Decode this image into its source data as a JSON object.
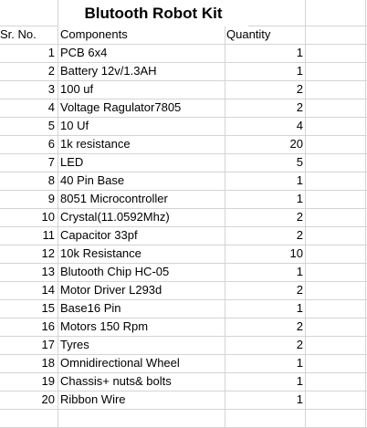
{
  "title": "Blutooth Robot Kit",
  "headers": {
    "sr_no": "Sr. No.",
    "components": "Components",
    "quantity": "Quantity"
  },
  "rows": [
    {
      "sr": "1",
      "component": "PCB 6x4",
      "qty": "1"
    },
    {
      "sr": "2",
      "component": "Battery 12v/1.3AH",
      "qty": "1"
    },
    {
      "sr": "3",
      "component": "100 uf",
      "qty": "2"
    },
    {
      "sr": "4",
      "component": "Voltage Ragulator7805",
      "qty": "2"
    },
    {
      "sr": "5",
      "component": "10 Uf",
      "qty": "4"
    },
    {
      "sr": "6",
      "component": "1k resistance",
      "qty": "20"
    },
    {
      "sr": "7",
      "component": "LED",
      "qty": "5"
    },
    {
      "sr": "8",
      "component": "40 Pin Base",
      "qty": "1"
    },
    {
      "sr": "9",
      "component": "8051 Microcontroller",
      "qty": "1"
    },
    {
      "sr": "10",
      "component": "Crystal(11.0592Mhz)",
      "qty": "2"
    },
    {
      "sr": "11",
      "component": "Capacitor 33pf",
      "qty": "2"
    },
    {
      "sr": "12",
      "component": "10k Resistance",
      "qty": "10"
    },
    {
      "sr": "13",
      "component": "Blutooth Chip HC-05",
      "qty": "1"
    },
    {
      "sr": "14",
      "component": "Motor Driver L293d",
      "qty": "2"
    },
    {
      "sr": "15",
      "component": "Base16 Pin",
      "qty": "1"
    },
    {
      "sr": "16",
      "component": "Motors 150 Rpm",
      "qty": "2"
    },
    {
      "sr": "17",
      "component": "Tyres",
      "qty": "2"
    },
    {
      "sr": "18",
      "component": "Omnidirectional Wheel",
      "qty": "1"
    },
    {
      "sr": "19",
      "component": "Chassis+ nuts& bolts",
      "qty": "1"
    },
    {
      "sr": "20",
      "component": "Ribbon Wire",
      "qty": "1"
    }
  ]
}
